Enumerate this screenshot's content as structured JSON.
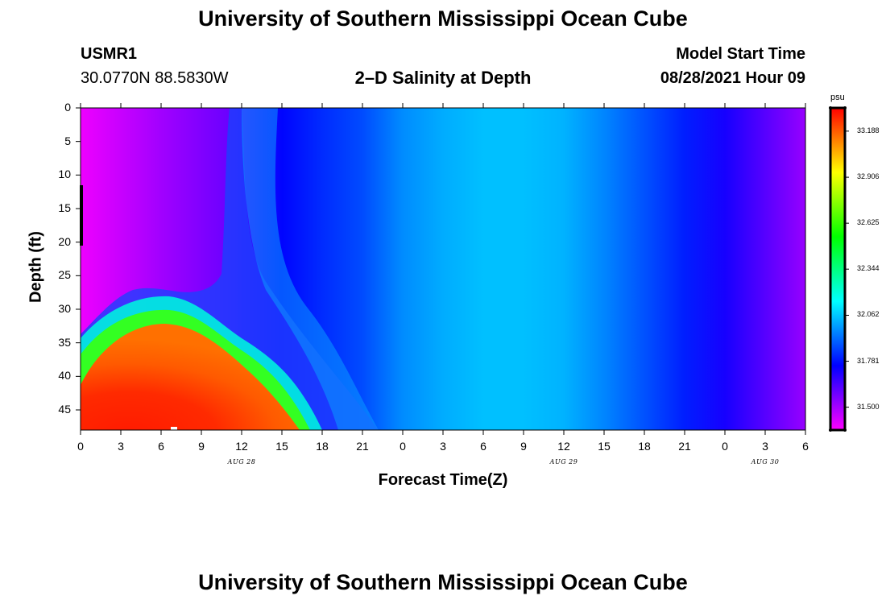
{
  "header": {
    "title": "University of Southern Mississippi Ocean Cube",
    "station_id": "USMR1",
    "station_coords": "30.0770N  88.5830W",
    "plot_title": "2–D Salinity at Depth",
    "model_start_label": "Model Start Time",
    "model_start_value": "08/28/2021 Hour 09"
  },
  "footer": {
    "title": "University of Southern Mississippi Ocean Cube"
  },
  "chart_data": {
    "type": "heatmap",
    "title": "2–D Salinity at Depth",
    "xlabel": "Forecast Time(Z)",
    "ylabel": "Depth (ft)",
    "x_range_hours": [
      0,
      54
    ],
    "y_range_ft": [
      0,
      48
    ],
    "y_inverted": true,
    "x_tick_labels": [
      "0",
      "3",
      "6",
      "9",
      "12",
      "15",
      "18",
      "21",
      "0",
      "3",
      "6",
      "9",
      "12",
      "15",
      "18",
      "21",
      "0",
      "3",
      "6"
    ],
    "y_tick_labels": [
      "0",
      "5",
      "10",
      "15",
      "20",
      "25",
      "30",
      "35",
      "40",
      "45"
    ],
    "date_labels": [
      {
        "text": "AUG  28",
        "at_hour": 12
      },
      {
        "text": "AUG  29",
        "at_hour": 36
      },
      {
        "text": "AUG  30",
        "at_hour": 51
      }
    ],
    "colorbar": {
      "unit": "psu",
      "ticks": [
        "33.188",
        "32.906",
        "32.625",
        "32.344",
        "32.062",
        "31.781",
        "31.500"
      ],
      "tick_values": [
        33.188,
        32.906,
        32.625,
        32.344,
        32.062,
        31.781,
        31.5
      ],
      "range": [
        31.36,
        33.33
      ]
    },
    "surface_salinity_by_hour": [
      [
        0,
        31.36
      ],
      [
        4,
        31.38
      ],
      [
        7,
        31.48
      ],
      [
        10,
        31.55
      ],
      [
        11.5,
        31.6
      ],
      [
        12,
        31.64
      ],
      [
        15,
        31.76
      ],
      [
        18,
        31.82
      ],
      [
        21,
        31.87
      ],
      [
        24,
        31.97
      ],
      [
        27,
        32.02
      ],
      [
        30,
        32.05
      ],
      [
        33,
        32.05
      ],
      [
        36,
        32.03
      ],
      [
        39,
        31.96
      ],
      [
        42,
        31.88
      ],
      [
        45,
        31.8
      ],
      [
        48,
        31.72
      ],
      [
        51,
        31.62
      ],
      [
        54,
        31.52
      ]
    ],
    "bottom_high_salinity_feature": {
      "hours": [
        0,
        16
      ],
      "peak_salinity": 33.33,
      "top_depth_ft_at_peak": 32,
      "peak_hour": 6
    },
    "grid": false
  },
  "colors": {
    "background": "#ffffff",
    "text": "#000000",
    "scale_low": "#ff00ff",
    "scale_high": "#ff0000"
  }
}
